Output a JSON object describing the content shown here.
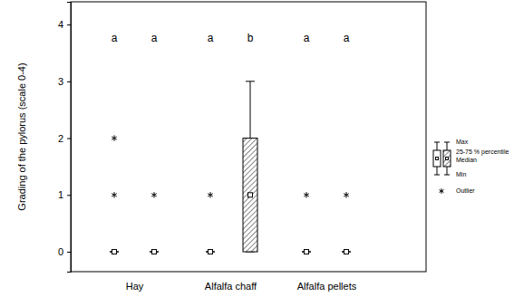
{
  "chart_data": {
    "type": "box",
    "y_label": "Grading of the pylorus (scale 0-4)",
    "categories": [
      "Hay",
      "Alfalfa chaff",
      "Alfalfa pellets"
    ],
    "series": [
      {
        "color": "#ffffff",
        "values": [
          {
            "min": 0,
            "q1": 0,
            "median": 0,
            "q3": 0,
            "max": 0,
            "outliers": [
              1,
              2
            ]
          },
          {
            "min": 0,
            "q1": 0,
            "median": 0,
            "q3": 0,
            "max": 0,
            "outliers": [
              1
            ]
          },
          {
            "min": 0,
            "q1": 0,
            "median": 0,
            "q3": 0,
            "max": 0,
            "outliers": [
              1
            ]
          }
        ],
        "letters": [
          "a",
          "a",
          "a"
        ]
      },
      {
        "color": "#ffffff",
        "values": [
          {
            "min": 0,
            "q1": 0,
            "median": 0,
            "q3": 0,
            "max": 0,
            "outliers": [
              1
            ]
          },
          {
            "min": 0,
            "q1": 0,
            "median": 1,
            "q3": 2,
            "max": 3,
            "outliers": []
          },
          {
            "min": 0,
            "q1": 0,
            "median": 0,
            "q3": 0,
            "max": 0,
            "outliers": [
              1
            ]
          }
        ],
        "letters": [
          "a",
          "b",
          "a"
        ]
      }
    ],
    "ylim": [
      -0.35,
      4.4
    ],
    "yticks": [
      0,
      1,
      2,
      3,
      4
    ],
    "marker": "asterisk",
    "legend": "right",
    "legend_labels": [
      "Max",
      "25-75 % percentile",
      "Median",
      "Min",
      "Outlier"
    ]
  }
}
